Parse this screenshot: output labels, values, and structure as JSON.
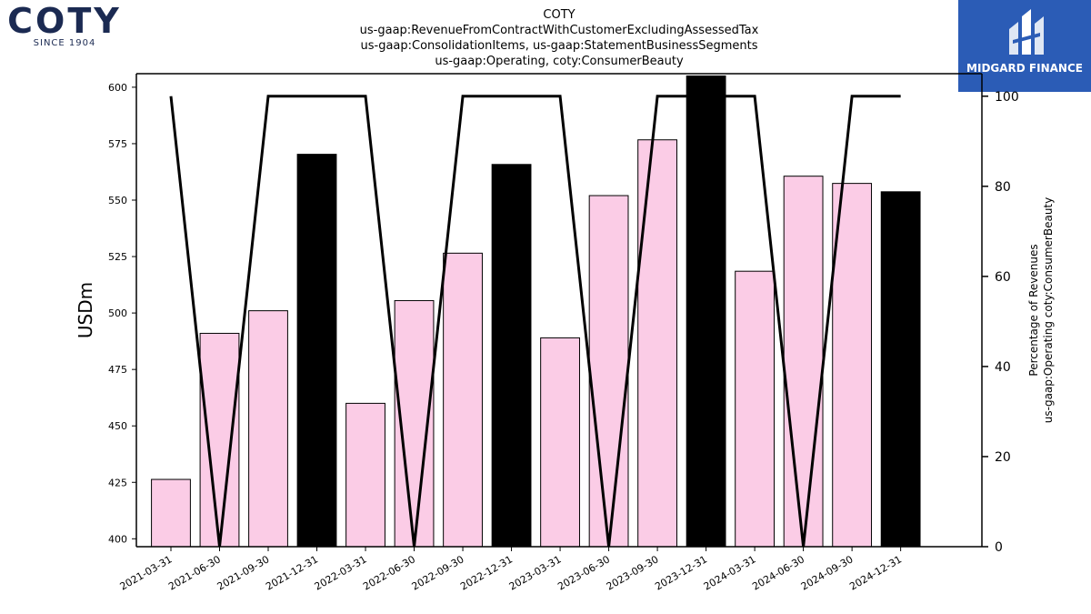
{
  "logos": {
    "left": {
      "wordmark": "COTY",
      "tagline": "SINCE 1904"
    },
    "right": {
      "brand": "MIDGARD FINANCE"
    }
  },
  "colors": {
    "bar_pink": "#fbcce6",
    "bar_black": "#000000",
    "line": "#000000",
    "brand_navy": "#1b2a52",
    "brand_blue": "#2b5cb6"
  },
  "chart_data": {
    "type": "bar",
    "title": [
      "COTY",
      "us-gaap:RevenueFromContractWithCustomerExcludingAssessedTax",
      "us-gaap:ConsolidationItems, us-gaap:StatementBusinessSegments",
      "us-gaap:Operating, coty:ConsumerBeauty"
    ],
    "categories": [
      "2021-03-31",
      "2021-06-30",
      "2021-09-30",
      "2021-12-31",
      "2022-03-31",
      "2022-06-30",
      "2022-09-30",
      "2022-12-31",
      "2023-03-31",
      "2023-06-30",
      "2023-09-30",
      "2023-12-31",
      "2024-03-31",
      "2024-06-30",
      "2024-09-30",
      "2024-12-31"
    ],
    "ylabel": "USDm",
    "y2label": [
      "Percentage of Revenues",
      "us-gaap:Operating coty:ConsumerBeauty"
    ],
    "ylim": [
      396.5,
      606
    ],
    "yticks": [
      400,
      425,
      450,
      475,
      500,
      525,
      550,
      575,
      600
    ],
    "y2lim": [
      0,
      105
    ],
    "y2ticks": [
      0,
      20,
      40,
      60,
      80,
      100
    ],
    "grid": false,
    "series": [
      {
        "type": "bar",
        "values": [
          426.3,
          491.0,
          501.0,
          570.3,
          460.0,
          505.5,
          526.5,
          565.8,
          489.0,
          552.0,
          576.7,
          605.0,
          518.5,
          560.6,
          557.4,
          553.7
        ],
        "colors": [
          "pink",
          "pink",
          "pink",
          "black",
          "pink",
          "pink",
          "pink",
          "black",
          "pink",
          "pink",
          "pink",
          "black",
          "pink",
          "pink",
          "pink",
          "black"
        ]
      },
      {
        "type": "line",
        "axis": "secondary",
        "values": [
          100,
          0,
          100,
          100,
          100,
          0,
          100,
          100,
          100,
          0,
          100,
          100,
          100,
          0,
          100,
          100
        ]
      }
    ]
  }
}
